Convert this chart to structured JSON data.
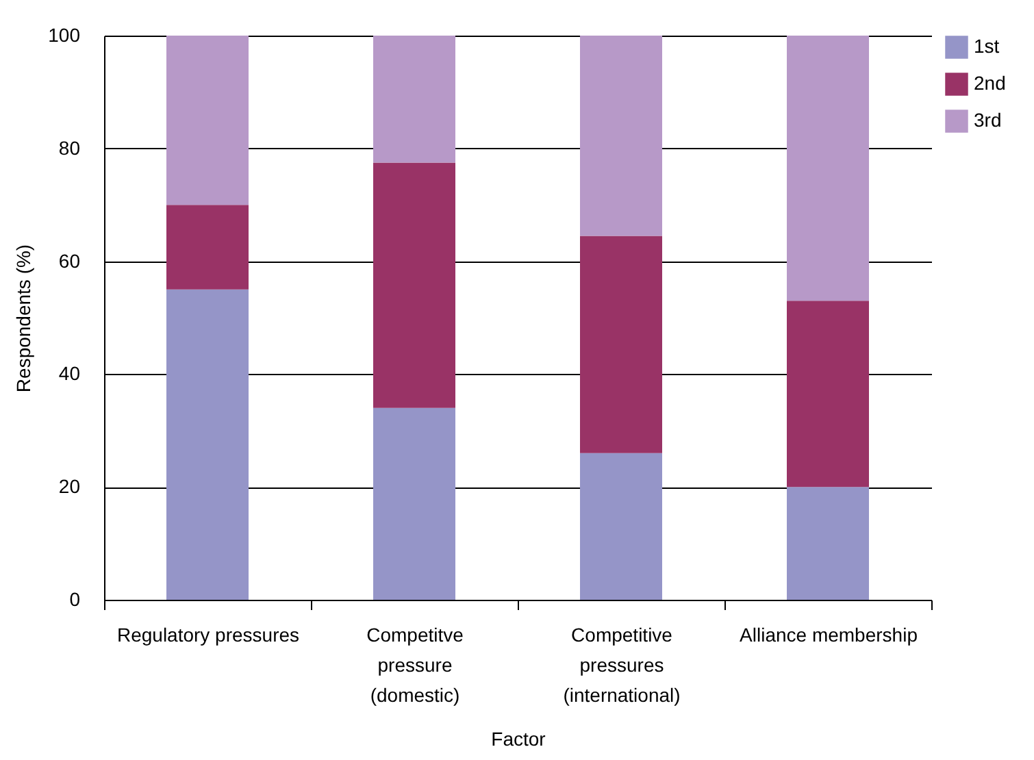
{
  "chart_data": {
    "type": "bar",
    "stacked": true,
    "xlabel": "Factor",
    "ylabel": "Respondents (%)",
    "categories": [
      "Regulatory pressures",
      "Competitve pressure (domestic)",
      "Competitive pressures (international)",
      "Alliance membership"
    ],
    "series": [
      {
        "name": "1st",
        "color": "#9595c8",
        "values": [
          55,
          34,
          26,
          20
        ]
      },
      {
        "name": "2nd",
        "color": "#993366",
        "values": [
          15,
          43.5,
          38.5,
          33
        ]
      },
      {
        "name": "3rd",
        "color": "#b799c8",
        "values": [
          30,
          22.5,
          35.5,
          47
        ]
      }
    ],
    "ylim": [
      0,
      100
    ],
    "yticks": [
      0,
      20,
      40,
      60,
      80,
      100
    ],
    "grid": "y",
    "legend": "top right"
  }
}
